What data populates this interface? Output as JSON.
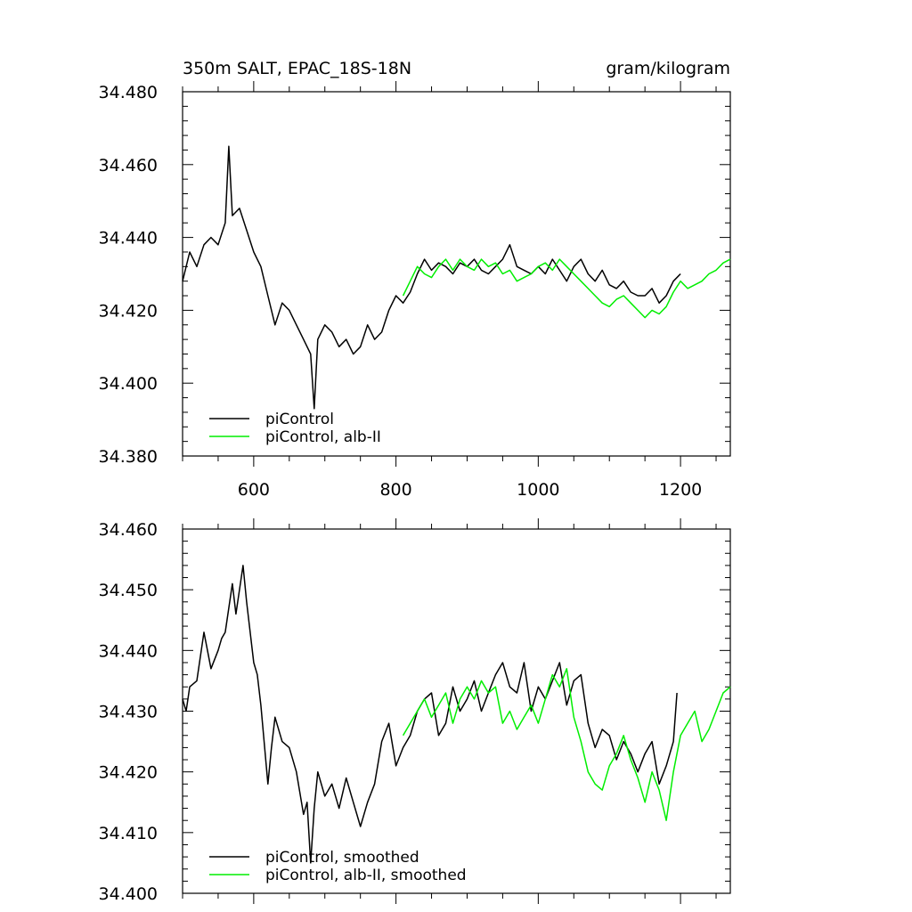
{
  "chart_data": [
    {
      "type": "line",
      "title": "350m SALT, EPAC_18S-18N",
      "units": "gram/kilogram",
      "xlim": [
        500,
        1270
      ],
      "ylim": [
        34.38,
        34.48
      ],
      "xticks": [
        600,
        800,
        1000,
        1200
      ],
      "xtick_labels": [
        "600",
        "800",
        "1000",
        "1200"
      ],
      "yticks": [
        34.38,
        34.4,
        34.42,
        34.44,
        34.46,
        34.48
      ],
      "ytick_labels": [
        "34.380",
        "34.400",
        "34.420",
        "34.440",
        "34.460",
        "34.480"
      ],
      "legend_position": "bottom-left",
      "series": [
        {
          "name": "piControl",
          "color": "#000000",
          "x": [
            500,
            510,
            520,
            530,
            540,
            550,
            560,
            565,
            570,
            580,
            590,
            600,
            610,
            620,
            630,
            640,
            650,
            660,
            670,
            680,
            685,
            690,
            700,
            710,
            720,
            730,
            740,
            750,
            760,
            770,
            780,
            790,
            800,
            810,
            820,
            830,
            840,
            850,
            860,
            870,
            880,
            890,
            900,
            910,
            920,
            930,
            940,
            950,
            960,
            970,
            980,
            990,
            1000,
            1010,
            1020,
            1030,
            1040,
            1050,
            1060,
            1070,
            1080,
            1090,
            1100,
            1110,
            1120,
            1130,
            1140,
            1150,
            1160,
            1170,
            1180,
            1190,
            1200
          ],
          "y": [
            34.428,
            34.436,
            34.432,
            34.438,
            34.44,
            34.438,
            34.444,
            34.465,
            34.446,
            34.448,
            34.442,
            34.436,
            34.432,
            34.424,
            34.416,
            34.422,
            34.42,
            34.416,
            34.412,
            34.408,
            34.393,
            34.412,
            34.416,
            34.414,
            34.41,
            34.412,
            34.408,
            34.41,
            34.416,
            34.412,
            34.414,
            34.42,
            34.424,
            34.422,
            34.425,
            34.43,
            34.434,
            34.431,
            34.433,
            34.432,
            34.43,
            34.433,
            34.432,
            34.434,
            34.431,
            34.43,
            34.432,
            34.434,
            34.438,
            34.432,
            34.431,
            34.43,
            34.432,
            34.43,
            34.434,
            34.431,
            34.428,
            34.432,
            34.434,
            34.43,
            34.428,
            34.431,
            34.427,
            34.426,
            34.428,
            34.425,
            34.424,
            34.424,
            34.426,
            34.422,
            34.424,
            34.428,
            34.43
          ]
        },
        {
          "name": "piControl, alb-II",
          "color": "#00ee00",
          "x": [
            810,
            820,
            830,
            840,
            850,
            860,
            870,
            880,
            890,
            900,
            910,
            920,
            930,
            940,
            950,
            960,
            970,
            980,
            990,
            1000,
            1010,
            1020,
            1030,
            1040,
            1050,
            1060,
            1070,
            1080,
            1090,
            1100,
            1110,
            1120,
            1130,
            1140,
            1150,
            1160,
            1170,
            1180,
            1190,
            1200,
            1210,
            1220,
            1230,
            1240,
            1250,
            1260,
            1270
          ],
          "y": [
            34.424,
            34.428,
            34.432,
            34.43,
            34.429,
            34.432,
            34.434,
            34.431,
            34.434,
            34.432,
            34.431,
            34.434,
            34.432,
            34.433,
            34.43,
            34.431,
            34.428,
            34.429,
            34.43,
            34.432,
            34.433,
            34.431,
            34.434,
            34.432,
            34.43,
            34.428,
            34.426,
            34.424,
            34.422,
            34.421,
            34.423,
            34.424,
            34.422,
            34.42,
            34.418,
            34.42,
            34.419,
            34.421,
            34.425,
            34.428,
            34.426,
            34.427,
            34.428,
            34.43,
            34.431,
            34.433,
            34.434
          ]
        }
      ]
    },
    {
      "type": "line",
      "title": "",
      "xlim": [
        500,
        1270
      ],
      "ylim": [
        34.4,
        34.46
      ],
      "xticks": [
        600,
        800,
        1000,
        1200
      ],
      "xtick_labels": [],
      "yticks": [
        34.4,
        34.41,
        34.42,
        34.43,
        34.44,
        34.45,
        34.46
      ],
      "ytick_labels": [
        "34.400",
        "34.410",
        "34.420",
        "34.430",
        "34.440",
        "34.450",
        "34.460"
      ],
      "legend_position": "bottom-left",
      "series": [
        {
          "name": "piControl, smoothed",
          "color": "#000000",
          "x": [
            500,
            505,
            510,
            520,
            530,
            540,
            550,
            555,
            560,
            570,
            575,
            580,
            585,
            590,
            600,
            605,
            610,
            620,
            625,
            630,
            640,
            650,
            660,
            670,
            675,
            680,
            685,
            690,
            700,
            710,
            720,
            730,
            740,
            750,
            760,
            770,
            780,
            790,
            800,
            810,
            820,
            830,
            840,
            850,
            860,
            870,
            880,
            890,
            900,
            910,
            920,
            930,
            940,
            950,
            960,
            970,
            980,
            990,
            1000,
            1010,
            1020,
            1030,
            1040,
            1050,
            1060,
            1070,
            1080,
            1090,
            1100,
            1110,
            1120,
            1130,
            1140,
            1150,
            1160,
            1170,
            1180,
            1190,
            1195
          ],
          "y": [
            34.432,
            34.43,
            34.434,
            34.435,
            34.443,
            34.437,
            34.44,
            34.442,
            34.443,
            34.451,
            34.446,
            34.45,
            34.454,
            34.448,
            34.438,
            34.436,
            34.431,
            34.418,
            34.424,
            34.429,
            34.425,
            34.424,
            34.42,
            34.413,
            34.415,
            34.405,
            34.414,
            34.42,
            34.416,
            34.418,
            34.414,
            34.419,
            34.415,
            34.411,
            34.415,
            34.418,
            34.425,
            34.428,
            34.421,
            34.424,
            34.426,
            34.43,
            34.432,
            34.433,
            34.426,
            34.428,
            34.434,
            34.43,
            34.432,
            34.435,
            34.43,
            34.433,
            34.436,
            34.438,
            34.434,
            34.433,
            34.438,
            34.43,
            34.434,
            34.432,
            34.435,
            34.438,
            34.431,
            34.435,
            34.436,
            34.428,
            34.424,
            34.427,
            34.426,
            34.422,
            34.425,
            34.423,
            34.42,
            34.423,
            34.425,
            34.418,
            34.421,
            34.425,
            34.433
          ]
        },
        {
          "name": "piControl, alb-II, smoothed",
          "color": "#00ee00",
          "x": [
            810,
            820,
            830,
            840,
            850,
            860,
            870,
            880,
            890,
            900,
            910,
            920,
            930,
            940,
            950,
            960,
            970,
            980,
            990,
            1000,
            1010,
            1020,
            1030,
            1040,
            1050,
            1060,
            1070,
            1080,
            1090,
            1100,
            1110,
            1120,
            1130,
            1140,
            1150,
            1160,
            1170,
            1180,
            1190,
            1200,
            1210,
            1220,
            1230,
            1240,
            1250,
            1260,
            1270
          ],
          "y": [
            34.426,
            34.428,
            34.43,
            34.432,
            34.429,
            34.431,
            34.433,
            34.428,
            34.432,
            34.434,
            34.432,
            34.435,
            34.433,
            34.434,
            34.428,
            34.43,
            34.427,
            34.429,
            34.431,
            34.428,
            34.432,
            34.436,
            34.434,
            34.437,
            34.429,
            34.425,
            34.42,
            34.418,
            34.417,
            34.421,
            34.423,
            34.426,
            34.422,
            34.419,
            34.415,
            34.42,
            34.417,
            34.412,
            34.42,
            34.426,
            34.428,
            34.43,
            34.425,
            34.427,
            34.43,
            34.433,
            34.434
          ]
        }
      ]
    }
  ]
}
